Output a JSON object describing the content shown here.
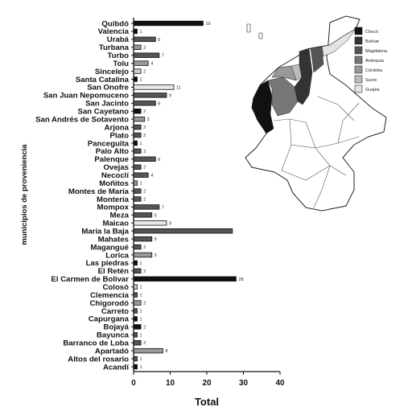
{
  "chart_data": {
    "type": "bar",
    "orientation": "horizontal",
    "xlabel": "Total",
    "ylabel": "municipios de proveniencia",
    "xlim": [
      0,
      40
    ],
    "xticks": [
      "0",
      "10",
      "20",
      "30",
      "40"
    ],
    "grid": false,
    "categories": [
      "Quibdó",
      "Valencia",
      "Urabá",
      "Turbana",
      "Turbo",
      "Tolu",
      "Sincelejo",
      "Santa Catalina",
      "San Onofre",
      "San Juan Nepomuceno",
      "San Jacinto",
      "San Cayetano",
      "San Andrés de Sotavento",
      "Arjona",
      "Plato",
      "Panceguita",
      "Palo Alto",
      "Palenque",
      "Ovejas",
      "Necoclí",
      "Moñitos",
      "Montes de María",
      "Montería",
      "Mompox",
      "Meza",
      "Maicao",
      "María la Baja",
      "Mahates",
      "Magangué",
      "Lorica",
      "Las piedras",
      "El Retén",
      "El Carmen de Bolivar",
      "Colosó",
      "Clemencia",
      "Chigorodó",
      "Carreto",
      "Capurgana",
      "Bojayá",
      "Bayunca",
      "Barranco de Loba",
      "Apartadó",
      "Altos del rosario",
      "Acandí"
    ],
    "values": [
      19,
      1,
      6,
      2,
      7,
      4,
      2,
      1,
      11,
      9,
      6,
      2,
      3,
      2,
      2,
      1,
      2,
      6,
      2,
      4,
      1,
      2,
      2,
      7,
      5,
      9,
      27,
      5,
      2,
      5,
      1,
      2,
      28,
      1,
      1,
      2,
      1,
      1,
      2,
      1,
      2,
      8,
      1,
      1
    ],
    "labels": [
      "19",
      "1",
      "6",
      "2",
      "7",
      "4",
      "2",
      "1",
      "11",
      "9",
      "6",
      "2",
      "3",
      "2",
      "2",
      "1",
      "2",
      "6",
      "2",
      "4",
      "1",
      "2",
      "2",
      "7",
      "5",
      "9",
      "",
      "5",
      "2",
      "5",
      "1",
      "2",
      "28",
      "1",
      "1",
      "2",
      "1",
      "1",
      "2",
      "1",
      "2",
      "8",
      "1",
      "1"
    ],
    "fills": [
      "#111111",
      "#111111",
      "#555555",
      "#999999",
      "#555555",
      "#999999",
      "#cccccc",
      "#111111",
      "#e8e8e8",
      "#555555",
      "#555555",
      "#111111",
      "#999999",
      "#555555",
      "#555555",
      "#111111",
      "#555555",
      "#555555",
      "#555555",
      "#555555",
      "#999999",
      "#555555",
      "#555555",
      "#555555",
      "#555555",
      "#e8e8e8",
      "#555555",
      "#555555",
      "#555555",
      "#999999",
      "#111111",
      "#555555",
      "#111111",
      "#cccccc",
      "#555555",
      "#999999",
      "#555555",
      "#111111",
      "#111111",
      "#555555",
      "#555555",
      "#999999",
      "#555555",
      "#111111"
    ],
    "legend": {
      "placement": "top-right",
      "entries": [
        {
          "name": "Chocó",
          "color": "#111111"
        },
        {
          "name": "Bolívar",
          "color": "#333333"
        },
        {
          "name": "Magdalena",
          "color": "#555555"
        },
        {
          "name": "Antioquia",
          "color": "#777777"
        },
        {
          "name": "Córdoba",
          "color": "#999999"
        },
        {
          "name": "Sucre",
          "color": "#bbbbbb"
        },
        {
          "name": "Guajira",
          "color": "#e4e4e4"
        }
      ]
    }
  }
}
